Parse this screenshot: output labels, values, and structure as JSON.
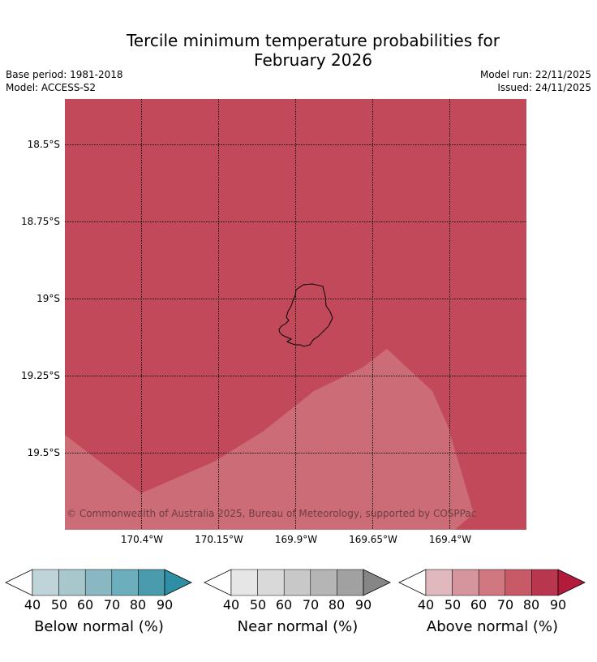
{
  "title_line1": "Tercile minimum temperature probabilities for",
  "title_line2": "February 2026",
  "meta": {
    "base_period": "Base period: 1981-2018",
    "model": "Model: ACCESS-S2",
    "model_run": "Model run: 22/11/2025",
    "issued": "Issued: 24/11/2025"
  },
  "map": {
    "lat_labels": [
      "18.5°S",
      "18.75°S",
      "19°S",
      "19.25°S",
      "19.5°S"
    ],
    "lon_labels": [
      "170.4°W",
      "170.15°W",
      "169.9°W",
      "169.65°W",
      "169.4°W"
    ],
    "copyright": "© Commonwealth of Australia 2025, Bureau of Meteorology, supported by COSPPac",
    "colors": {
      "above_70_80": "#c2495a",
      "above_60_70": "#cc6c76",
      "grid": "#000000"
    }
  },
  "colorbars": [
    {
      "label": "Below normal (%)",
      "ticks": [
        "40",
        "50",
        "60",
        "70",
        "80",
        "90"
      ],
      "colors": [
        "#bfd4d9",
        "#a8c7cd",
        "#8ab8c2",
        "#6caebb",
        "#4a9cac",
        "#2e8ea3"
      ]
    },
    {
      "label": "Near normal (%)",
      "ticks": [
        "40",
        "50",
        "60",
        "70",
        "80",
        "90"
      ],
      "colors": [
        "#e6e6e6",
        "#d9d9d9",
        "#c8c8c8",
        "#b5b5b5",
        "#a1a1a1",
        "#868686"
      ]
    },
    {
      "label": "Above normal (%)",
      "ticks": [
        "40",
        "50",
        "60",
        "70",
        "80",
        "90"
      ],
      "colors": [
        "#e0b8bd",
        "#d6959d",
        "#d1777f",
        "#c85a68",
        "#b8364e",
        "#b21b3c"
      ]
    }
  ]
}
